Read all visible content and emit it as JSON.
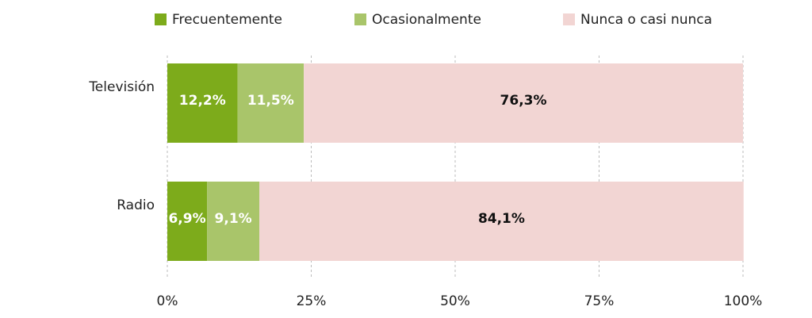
{
  "chart_data": {
    "type": "stacked-bar-horizontal",
    "categories": [
      "Televisión",
      "Radio"
    ],
    "series": [
      {
        "name": "Frecuentemente",
        "color": "#7dab1b",
        "label_color": "#ffffff",
        "values": [
          12.2,
          6.9
        ],
        "value_labels": [
          "12,2%",
          "6,9%"
        ]
      },
      {
        "name": "Ocasionalmente",
        "color": "#a9c56a",
        "label_color": "#ffffff",
        "values": [
          11.5,
          9.1
        ],
        "value_labels": [
          "11,5%",
          "9,1%"
        ]
      },
      {
        "name": "Nunca o casi nunca",
        "color": "#f2d5d3",
        "label_color": "#111111",
        "values": [
          76.3,
          84.1
        ],
        "value_labels": [
          "76,3%",
          "84,1%"
        ]
      }
    ],
    "xlim": [
      0,
      100
    ],
    "xticks": [
      {
        "value": 0,
        "label": "0%"
      },
      {
        "value": 25,
        "label": "25%"
      },
      {
        "value": 50,
        "label": "50%"
      },
      {
        "value": 75,
        "label": "75%"
      },
      {
        "value": 100,
        "label": "100%"
      }
    ],
    "grid": true,
    "legend": "top"
  }
}
